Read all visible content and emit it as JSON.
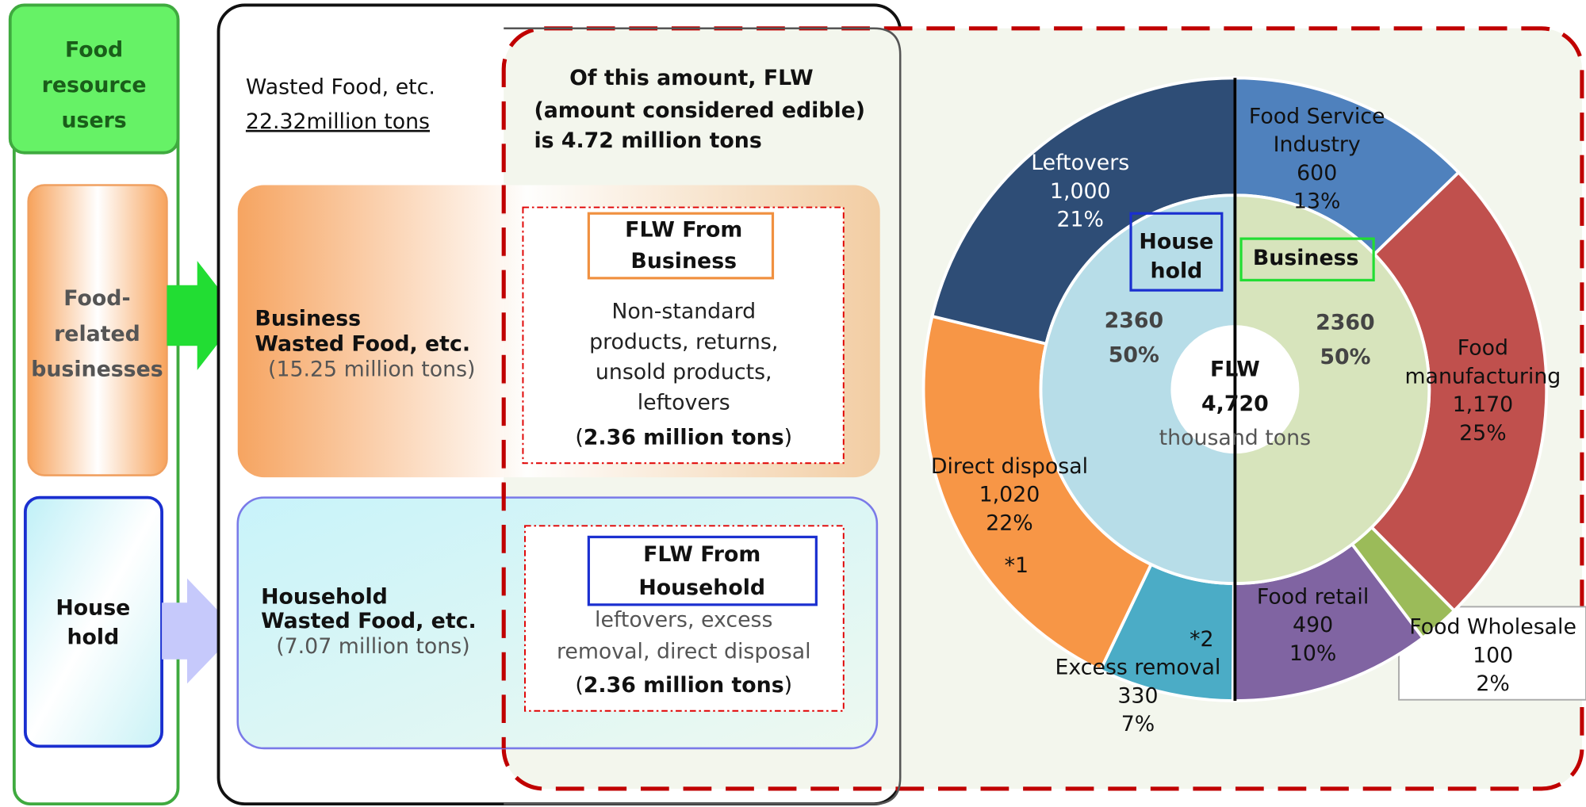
{
  "users": {
    "title": [
      "Food",
      "resource",
      "users"
    ],
    "business": [
      "Food-",
      "related",
      "businesses"
    ],
    "household": [
      "House",
      "hold"
    ]
  },
  "wasted": {
    "title": "Wasted Food, etc.",
    "amount": "22.32million tons"
  },
  "flw_note": [
    "Of this amount, FLW",
    "(amount considered edible)",
    "is 4.72 million tons"
  ],
  "business_box": {
    "title": [
      "Business",
      "Wasted Food, etc."
    ],
    "amount": "(15.25 million tons)",
    "flw_title": [
      "FLW From",
      "Business"
    ],
    "description": [
      "Non-standard",
      "products, returns,",
      "unsold products,",
      "leftovers"
    ],
    "flw_amount": {
      "open": "(",
      "value": "2.36 million tons",
      "close": ")"
    }
  },
  "household_box": {
    "title": [
      "Household",
      "Wasted Food, etc."
    ],
    "amount": "(7.07 million tons)",
    "flw_title": [
      "FLW From",
      "Household"
    ],
    "description": [
      "leftovers, excess",
      "removal, direct disposal"
    ],
    "flw_amount": {
      "open": "(",
      "value": "2.36 million tons",
      "close": ")"
    }
  },
  "notes": [
    "*1",
    "*2"
  ],
  "chart_data": {
    "type": "donut",
    "center": {
      "title": "FLW",
      "total": 4720,
      "total_label": "4,720",
      "unit": "thousand tons"
    },
    "segments": [
      {
        "name": [
          "Food Service",
          "Industry"
        ],
        "value": 600,
        "share": "13%",
        "color": "#4f81bd"
      },
      {
        "name": [
          "Food",
          "manufacturing"
        ],
        "value": 1170,
        "value_label": "1,170",
        "share": "25%",
        "color": "#c0504d"
      },
      {
        "name": [
          "Food Wholesale"
        ],
        "value": 100,
        "share": "2%",
        "color": "#9bbb59"
      },
      {
        "name": [
          "Food retail"
        ],
        "value": 490,
        "share": "10%",
        "color": "#8064a2"
      },
      {
        "name": [
          "Excess removal"
        ],
        "value": 330,
        "share": "7%",
        "color": "#4bacc6"
      },
      {
        "name": [
          "Direct disposal"
        ],
        "value": 1020,
        "value_label": "1,020",
        "share": "22%",
        "color": "#f79646"
      },
      {
        "name": [
          "Leftovers"
        ],
        "value": 1000,
        "value_label": "1,000",
        "share": "21%",
        "color": "#2e4d76"
      }
    ],
    "inner": [
      {
        "name": [
          "Business"
        ],
        "value": 2360,
        "share": "50%",
        "color": "#d7e4bc"
      },
      {
        "name": [
          "House",
          "hold"
        ],
        "value": 2360,
        "share": "50%",
        "color": "#b7dde8"
      }
    ]
  }
}
